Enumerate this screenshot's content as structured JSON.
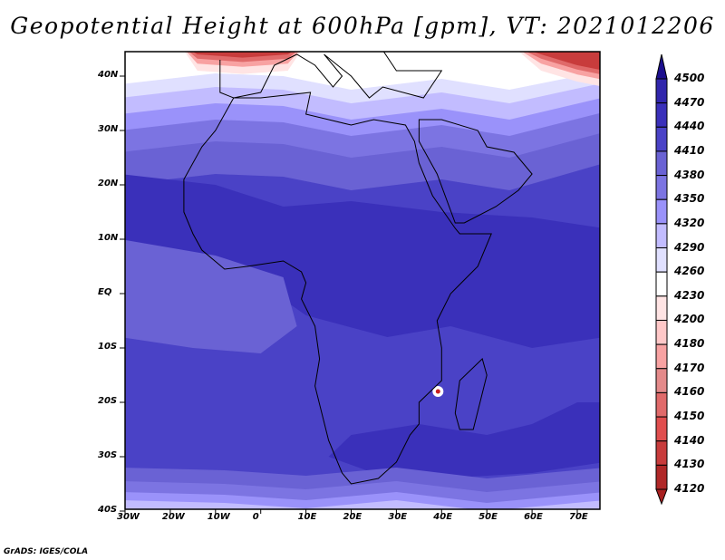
{
  "title": "Geopotential Height at 600hPa [gpm], VT: 2021012206",
  "lat_labels": [
    "40N",
    "30N",
    "20N",
    "10N",
    "EQ",
    "10S",
    "20S",
    "30S",
    "40S"
  ],
  "lon_labels": [
    "30W",
    "20W",
    "10W",
    "0",
    "10E",
    "20E",
    "30E",
    "40E",
    "50E",
    "60E",
    "70E"
  ],
  "colorbar": {
    "levels": [
      "4500",
      "4470",
      "4440",
      "4410",
      "4380",
      "4350",
      "4320",
      "4290",
      "4260",
      "4230",
      "4200",
      "4180",
      "4170",
      "4160",
      "4150",
      "4140",
      "4130",
      "4120"
    ],
    "colors": [
      "#2a1f9c",
      "#3126ac",
      "#3a30ba",
      "#4a42c6",
      "#6a62d4",
      "#7c74e2",
      "#9a92fa",
      "#c2bcff",
      "#e0e0ff",
      "#ffffff",
      "#ffe4e4",
      "#ffc8c8",
      "#f8a2a2",
      "#e48a8a",
      "#e06a6a",
      "#e04e4e",
      "#c83c3c",
      "#b02828"
    ],
    "top_arrow_color": "#1c0f8e",
    "bottom_arrow_color": "#a82020"
  },
  "credit": "GrADS: IGES/COLA"
}
